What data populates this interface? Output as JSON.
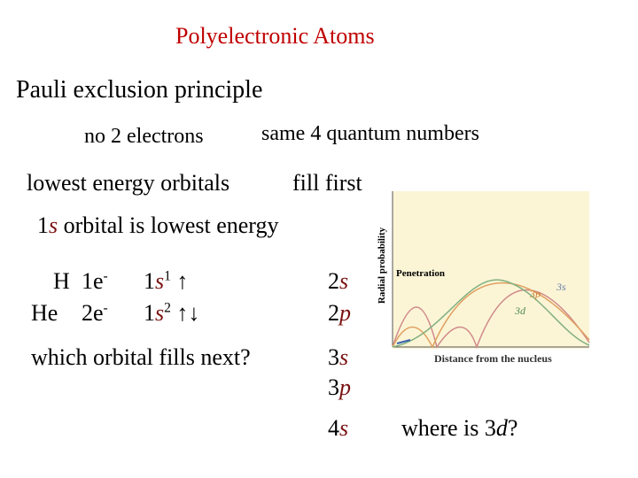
{
  "title": "Polyelectronic Atoms",
  "heading": "Pauli exclusion principle",
  "pauli_note": [
    "no 2 electrons",
    "same 4 quantum numbers"
  ],
  "aufbau": [
    "lowest energy orbitals",
    "fill first"
  ],
  "lowest": {
    "number": "1",
    "letter": "s",
    "rest": " orbital is lowest energy"
  },
  "configs": [
    {
      "atom": "H",
      "electrons": "1e",
      "charge": "-",
      "orbital": "1",
      "letter": "s",
      "power": "1",
      "arrows": "↑"
    },
    {
      "atom": "He",
      "electrons": "2e",
      "charge": "-",
      "orbital": "1",
      "letter": "s",
      "power": "2",
      "arrows": "↑↓"
    }
  ],
  "question": "which orbital fills next?",
  "orbitals": [
    {
      "number": "2",
      "letter": "s"
    },
    {
      "number": "2",
      "letter": "p"
    },
    {
      "number": "3",
      "letter": "s"
    },
    {
      "number": "3",
      "letter": "p"
    },
    {
      "number": "4",
      "letter": "s"
    }
  ],
  "graph": {
    "y_label": "Radial probability",
    "annotation": "Penetration",
    "curve_labels": [
      "3s",
      "3p",
      "3d"
    ],
    "x_label": "Distance from the nucleus"
  },
  "closing": {
    "prefix": "where is 3",
    "letter": "d",
    "suffix": "?"
  }
}
